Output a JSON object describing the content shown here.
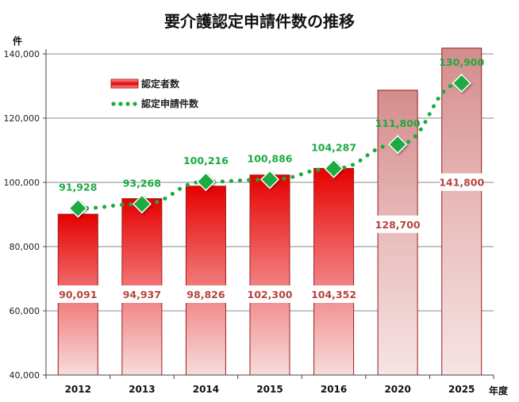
{
  "chart_data": {
    "type": "bar",
    "title": "要介護認定申請件数の推移",
    "ylabel": "件",
    "xlabel": "年度",
    "categories": [
      "2012",
      "2013",
      "2014",
      "2015",
      "2016",
      "2020",
      "2025"
    ],
    "ylim": [
      40000,
      140000
    ],
    "yticks": [
      40000,
      60000,
      80000,
      100000,
      120000,
      140000
    ],
    "ytick_labels": [
      "40,000",
      "60,000",
      "80,000",
      "100,000",
      "120,000",
      "140,000"
    ],
    "grid": true,
    "legend_position": "top-left",
    "series": [
      {
        "name": "認定者数",
        "kind": "bar",
        "values": [
          90091,
          94937,
          98826,
          102300,
          104352,
          128700,
          141800
        ],
        "labels": [
          "90,091",
          "94,937",
          "98,826",
          "102,300",
          "104,352",
          "128,700",
          "141,800"
        ],
        "color": "#e8000b",
        "projected_color": "#d99a9a",
        "label_color": "#b5443f"
      },
      {
        "name": "認定申請件数",
        "kind": "line",
        "style": "dotted",
        "marker": "diamond",
        "values": [
          91928,
          93268,
          100216,
          100886,
          104287,
          111800,
          130900
        ],
        "labels": [
          "91,928",
          "93,268",
          "100,216",
          "100,886",
          "104,287",
          "111,800",
          "130,900"
        ],
        "color": "#1aab40"
      }
    ]
  }
}
